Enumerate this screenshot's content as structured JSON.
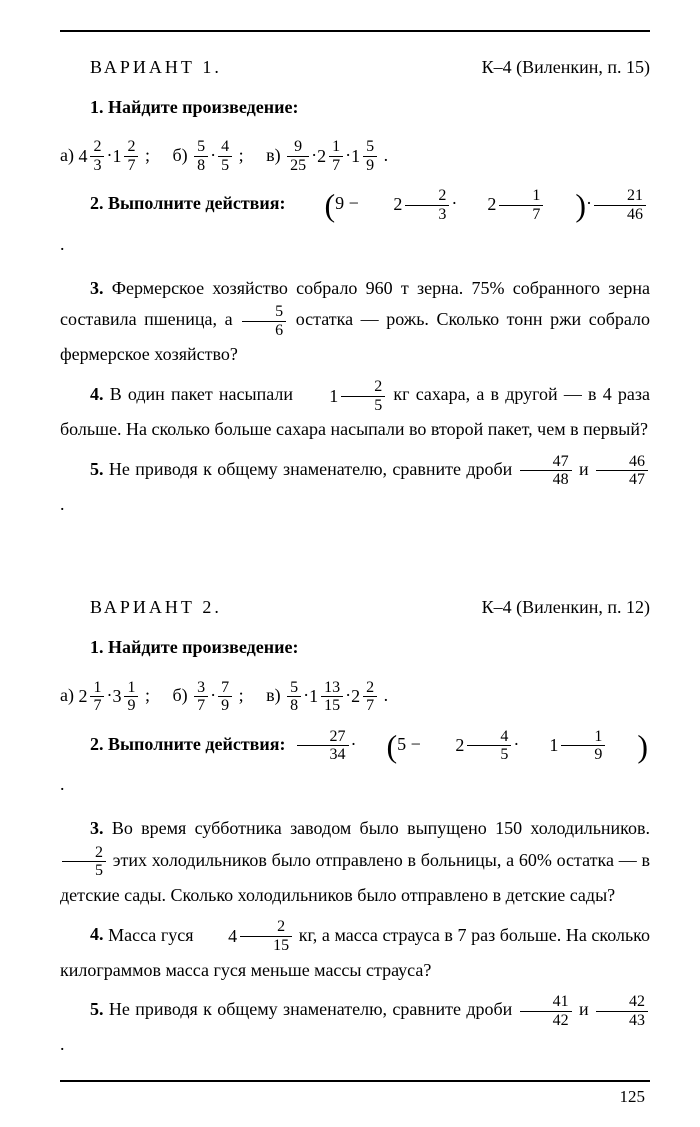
{
  "page_number": "125",
  "colors": {
    "text": "#000000",
    "background": "#ffffff",
    "rule": "#000000"
  },
  "variants": [
    {
      "title": "ВАРИАНТ 1.",
      "ref": "К–4 (Виленкин, п. 15)",
      "p1_intro": "1. Найдите произведение:",
      "p1a_label": "а)",
      "p1a_m1w": "4",
      "p1a_m1n": "2",
      "p1a_m1d": "3",
      "p1a_m2w": "1",
      "p1a_m2n": "2",
      "p1a_m2d": "7",
      "p1b_label": "б)",
      "p1b_f1n": "5",
      "p1b_f1d": "8",
      "p1b_f2n": "4",
      "p1b_f2d": "5",
      "p1c_label": "в)",
      "p1c_f1n": "9",
      "p1c_f1d": "25",
      "p1c_m1w": "2",
      "p1c_m1n": "1",
      "p1c_m1d": "7",
      "p1c_m2w": "1",
      "p1c_m2n": "5",
      "p1c_m2d": "9",
      "p2_label": "2. Выполните действия:",
      "p2_nine": "9",
      "p2_m1w": "2",
      "p2_m1n": "2",
      "p2_m1d": "3",
      "p2_m2w": "2",
      "p2_m2n": "1",
      "p2_m2d": "7",
      "p2_f1n": "21",
      "p2_f1d": "46",
      "p3_a": "3. Фермерское хозяйство собрало 960 т зерна. 75% собранного зерна составила пшеница, а",
      "p3_fn": "5",
      "p3_fd": "6",
      "p3_b": "остатка — рожь. Сколько тонн ржи собрало фермерское хозяйство?",
      "p4_a": "4. В один пакет насыпали",
      "p4_mw": "1",
      "p4_mn": "2",
      "p4_md": "5",
      "p4_b": "кг сахара, а в другой — в 4 раза больше. На сколько больше сахара насыпали во второй пакет, чем в первый?",
      "p5_a": "5. Не приводя к общему знаменателю, сравните дроби",
      "p5_f1n": "47",
      "p5_f1d": "48",
      "p5_and": "и",
      "p5_f2n": "46",
      "p5_f2d": "47"
    },
    {
      "title": "ВАРИАНТ 2.",
      "ref": "К–4 (Виленкин, п. 12)",
      "p1_intro": "1. Найдите произведение:",
      "p1a_label": "а)",
      "p1a_m1w": "2",
      "p1a_m1n": "1",
      "p1a_m1d": "7",
      "p1a_m2w": "3",
      "p1a_m2n": "1",
      "p1a_m2d": "9",
      "p1b_label": "б)",
      "p1b_f1n": "3",
      "p1b_f1d": "7",
      "p1b_f2n": "7",
      "p1b_f2d": "9",
      "p1c_label": "в)",
      "p1c_f1n": "5",
      "p1c_f1d": "8",
      "p1c_m1w": "1",
      "p1c_m1n": "13",
      "p1c_m1d": "15",
      "p1c_m2w": "2",
      "p1c_m2n": "2",
      "p1c_m2d": "7",
      "p2_label": "2. Выполните действия:",
      "p2_f0n": "27",
      "p2_f0d": "34",
      "p2_five": "5",
      "p2_m1w": "2",
      "p2_m1n": "4",
      "p2_m1d": "5",
      "p2_m2w": "1",
      "p2_m2n": "1",
      "p2_m2d": "9",
      "p3_a": "3. Во время субботника заводом было выпущено 150 холодильников.",
      "p3_fn": "2",
      "p3_fd": "5",
      "p3_b": "этих холодильников было отправлено в больницы, а 60% остатка — в детские сады. Сколько холодильников было отправлено в детские сады?",
      "p4_a": "4. Масса гуся",
      "p4_mw": "4",
      "p4_mn": "2",
      "p4_md": "15",
      "p4_b": "кг, а масса страуса в 7 раз больше. На сколько килограммов масса гуся меньше массы страуса?",
      "p5_a": "5. Не приводя к общему знаменателю, сравните дроби",
      "p5_f1n": "41",
      "p5_f1d": "42",
      "p5_and": "и",
      "p5_f2n": "42",
      "p5_f2d": "43"
    }
  ]
}
